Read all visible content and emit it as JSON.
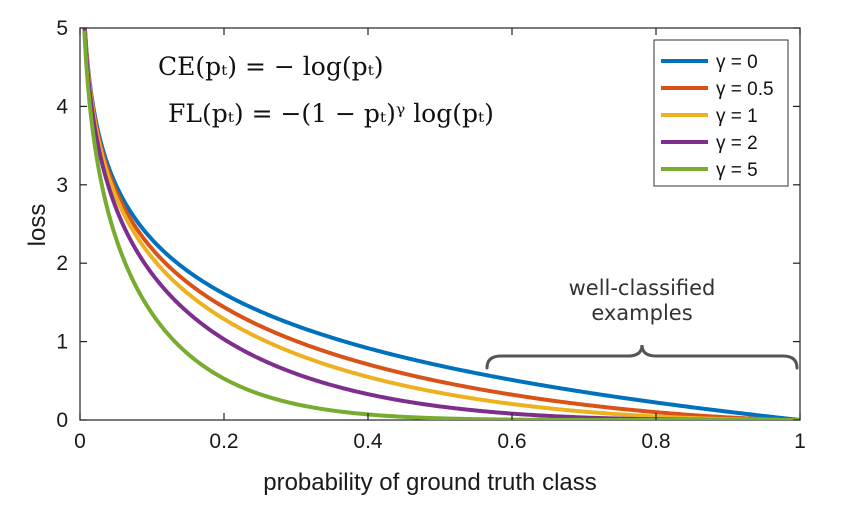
{
  "chart_data": {
    "type": "line",
    "xlabel": "probability of ground truth class",
    "ylabel": "loss",
    "xlim": [
      0,
      1
    ],
    "ylim": [
      0,
      5
    ],
    "xticks": [
      0,
      0.2,
      0.4,
      0.6,
      0.8,
      1
    ],
    "xtick_labels": [
      "0",
      "0.2",
      "0.4",
      "0.6",
      "0.8",
      "1"
    ],
    "yticks": [
      0,
      1,
      2,
      3,
      4,
      5
    ],
    "ytick_labels": [
      "0",
      "1",
      "2",
      "3",
      "4",
      "5"
    ],
    "function": "FL(p) = -(1 - p)^gamma * log(p)",
    "x": [
      0.01,
      0.02,
      0.05,
      0.1,
      0.2,
      0.3,
      0.4,
      0.5,
      0.6,
      0.7,
      0.8,
      0.9,
      1.0
    ],
    "series": [
      {
        "name": "γ = 0",
        "gamma": 0,
        "color": "#0072BD",
        "values": [
          4.61,
          3.91,
          3.0,
          2.3,
          1.61,
          1.2,
          0.92,
          0.69,
          0.51,
          0.36,
          0.22,
          0.11,
          0.0
        ]
      },
      {
        "name": "γ = 0.5",
        "gamma": 0.5,
        "color": "#D95319",
        "values": [
          4.58,
          3.87,
          2.92,
          2.18,
          1.44,
          1.01,
          0.71,
          0.49,
          0.32,
          0.2,
          0.1,
          0.03,
          0.0
        ]
      },
      {
        "name": "γ = 1",
        "gamma": 1,
        "color": "#EDB120",
        "values": [
          4.56,
          3.83,
          2.85,
          2.07,
          1.29,
          0.84,
          0.55,
          0.35,
          0.2,
          0.11,
          0.04,
          0.01,
          0.0
        ]
      },
      {
        "name": "γ = 2",
        "gamma": 2,
        "color": "#7E2F8E",
        "values": [
          4.51,
          3.76,
          2.71,
          1.86,
          1.03,
          0.59,
          0.33,
          0.17,
          0.08,
          0.03,
          0.01,
          0.0,
          0.0
        ]
      },
      {
        "name": "γ = 5",
        "gamma": 5,
        "color": "#77AC30",
        "values": [
          4.38,
          3.54,
          2.32,
          1.36,
          0.53,
          0.2,
          0.07,
          0.02,
          0.0,
          0.0,
          0.0,
          0.0,
          0.0
        ]
      }
    ],
    "legend_position": "top-right",
    "formulas": {
      "ce": "CE(pₜ) = − log(pₜ)",
      "fl": "FL(pₜ) = −(1 − pₜ)ᵞ log(pₜ)"
    },
    "annotation": {
      "line1": "well-classified",
      "line2": "examples",
      "x_range": [
        0.6,
        1.0
      ]
    }
  }
}
